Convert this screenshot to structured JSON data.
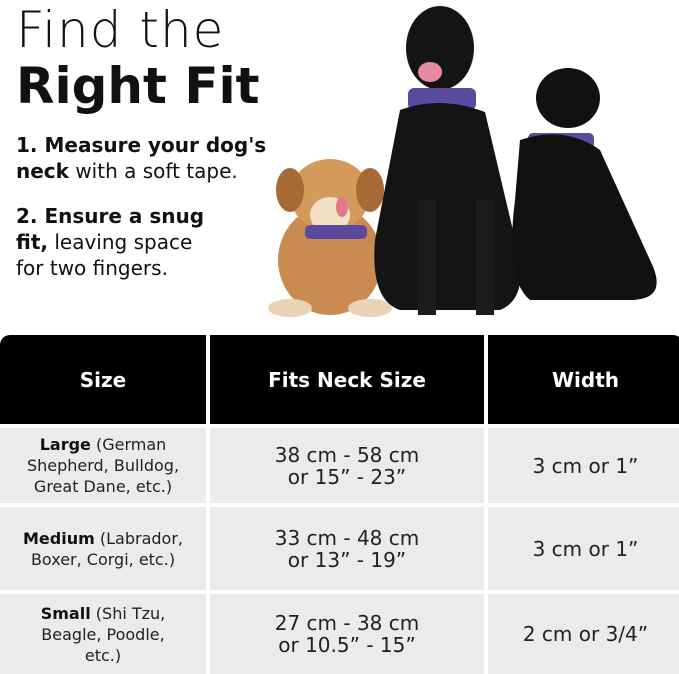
{
  "title": {
    "line1": "Find the",
    "line2": "Right Fit"
  },
  "steps": [
    {
      "bold": "1. Measure your dog's neck",
      "rest": " with a soft tape."
    },
    {
      "bold": "2. Ensure a snug fit,",
      "rest": " leaving space for two fingers."
    }
  ],
  "colors": {
    "collar": "#5b4a9e",
    "header": "#000000",
    "row": "#ebebeb"
  },
  "table": {
    "headers": [
      "Size",
      "Fits Neck Size",
      "Width"
    ],
    "rows": [
      {
        "size": "Large",
        "breeds": " (German Shepherd, Bulldog, Great Dane, etc.)",
        "neck1": "38 cm - 58 cm",
        "neck2": "or 15” - 23”",
        "width": "3 cm or 1”"
      },
      {
        "size": "Medium",
        "breeds": " (Labrador, Boxer, Corgi, etc.)",
        "neck1": "33 cm - 48 cm",
        "neck2": "or 13” - 19”",
        "width": "3 cm or 1”"
      },
      {
        "size": "Small",
        "breeds": " (Shi Tzu, Beagle, Poodle, etc.)",
        "neck1": "27 cm - 38 cm",
        "neck2": "or 10.5” - 15”",
        "width": "2 cm or 3/4”"
      }
    ]
  }
}
